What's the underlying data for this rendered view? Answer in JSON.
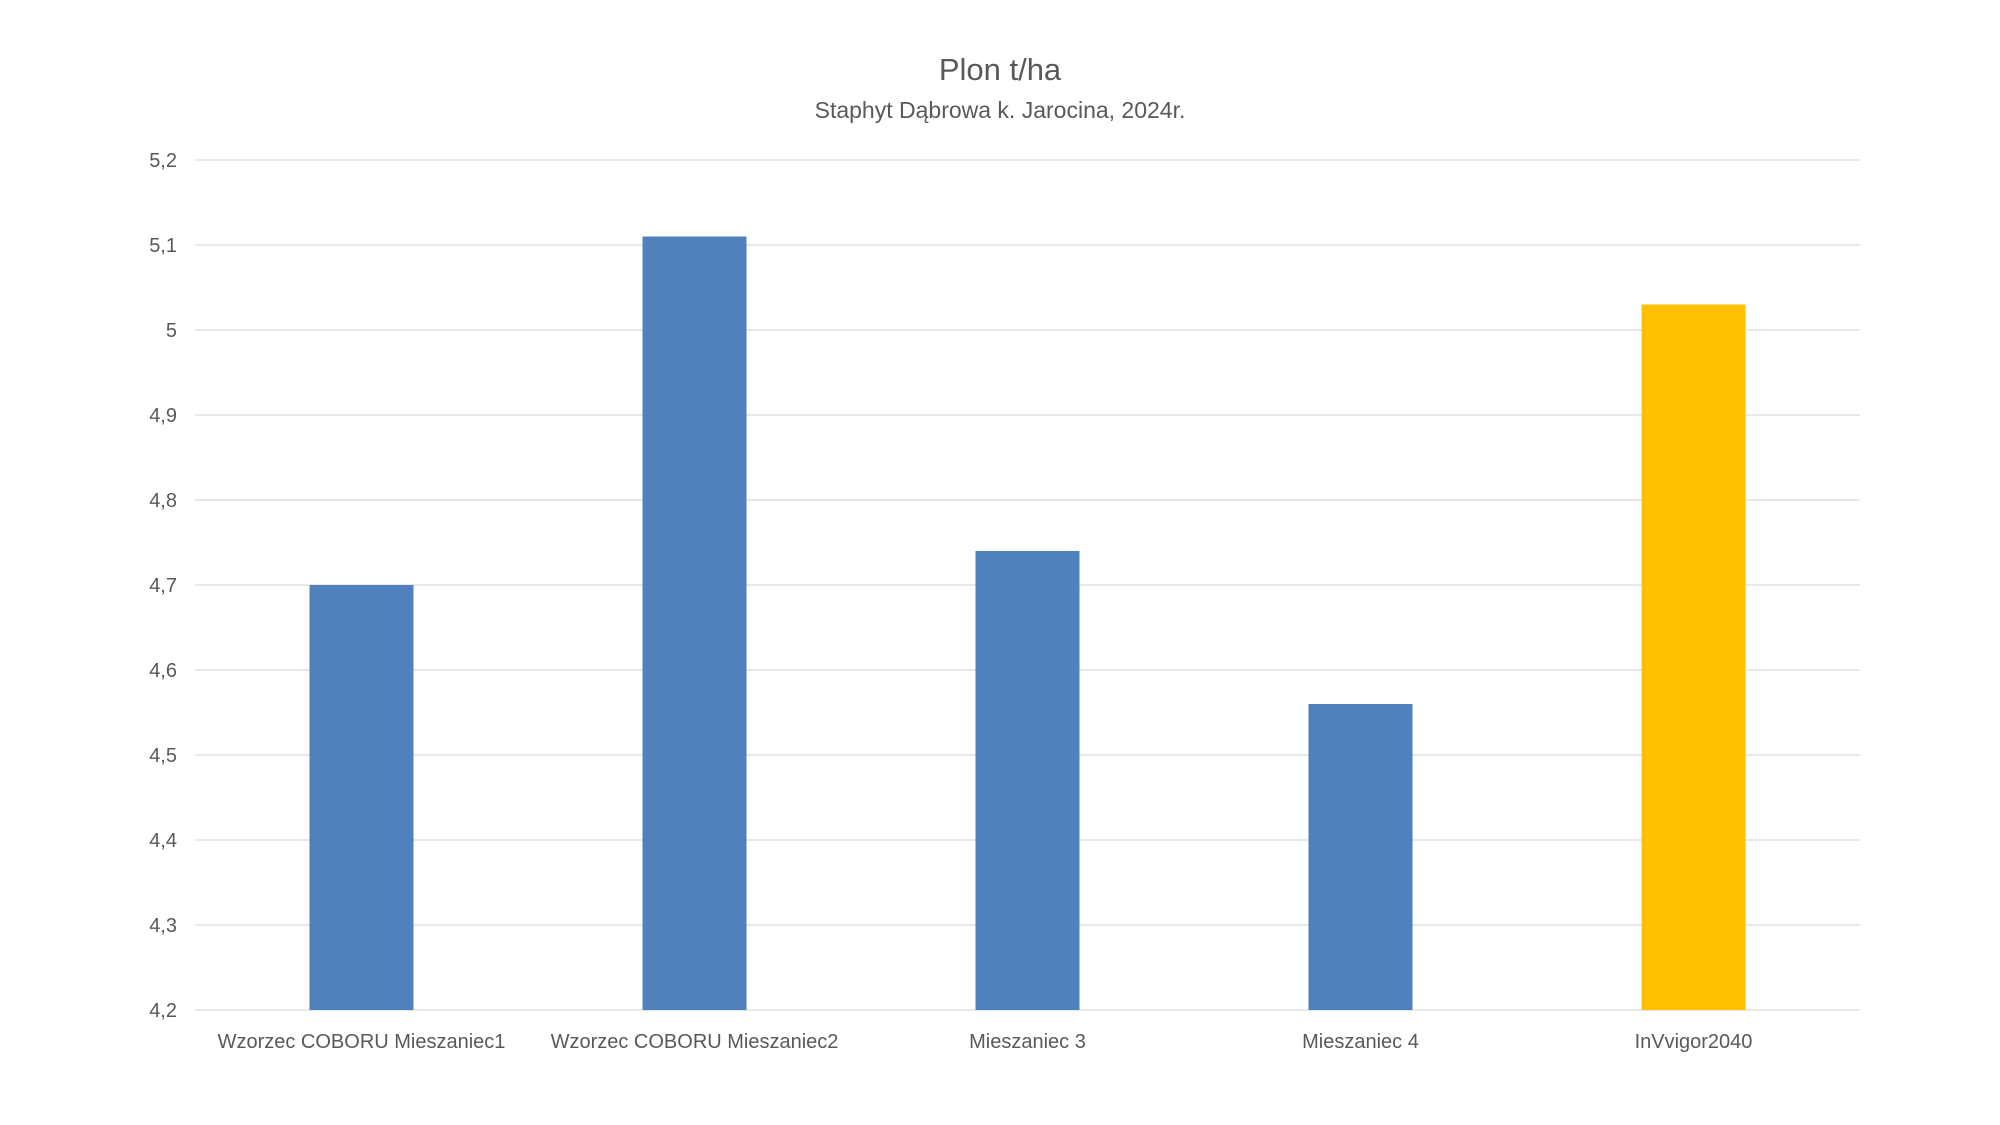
{
  "chart_data": {
    "type": "bar",
    "title": "Plon t/ha",
    "subtitle": "Staphyt Dąbrowa k. Jarocina, 2024r.",
    "xlabel": "",
    "ylabel": "",
    "categories": [
      "Wzorzec COBORU Mieszaniec1",
      "Wzorzec COBORU Mieszaniec2",
      "Mieszaniec 3",
      "Mieszaniec 4",
      "InVvigor2040"
    ],
    "values": [
      4.7,
      5.11,
      4.74,
      4.56,
      5.03
    ],
    "bar_colors": [
      "#4f81bd",
      "#4f81bd",
      "#4f81bd",
      "#4f81bd",
      "#ffc000"
    ],
    "ylim": [
      4.2,
      5.2
    ],
    "yticks": [
      4.2,
      4.3,
      4.4,
      4.5,
      4.6,
      4.7,
      4.8,
      4.9,
      5.0,
      5.1,
      5.2
    ],
    "ytick_labels": [
      "4,2",
      "4,3",
      "4,4",
      "4,5",
      "4,6",
      "4,7",
      "4,8",
      "4,9",
      "5",
      "5,1",
      "5,2"
    ],
    "grid": true,
    "gridline_color": "#d9d9d9",
    "text_color": "#595959"
  }
}
